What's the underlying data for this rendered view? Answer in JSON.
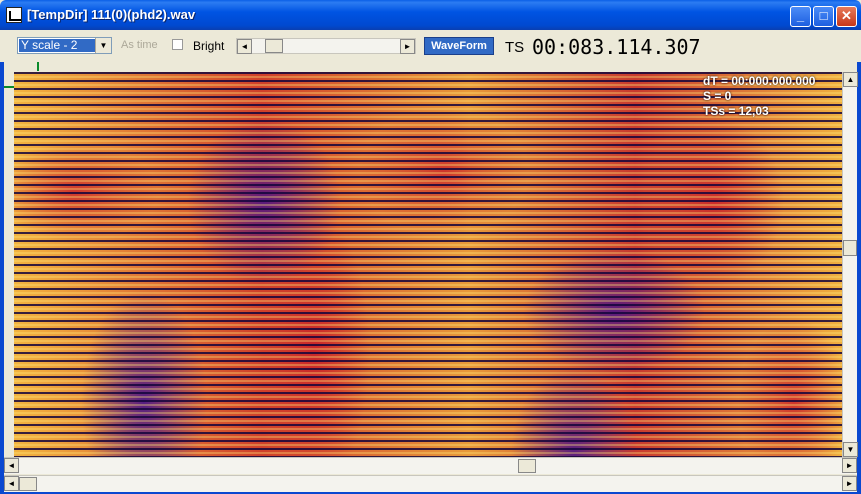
{
  "window": {
    "title": "[TempDir] 111(0)(phd2).wav",
    "minimize_glyph": "_",
    "maximize_glyph": "□",
    "close_glyph": "✕"
  },
  "toolbar": {
    "yscale": {
      "selected": "Y scale - 2"
    },
    "as_time_label": "As time",
    "as_time_checked": false,
    "bright_label": "Bright",
    "bright_slider_fraction": 0.1,
    "waveform_label": "WaveForm",
    "ts_label": "TS",
    "ts_value": "00:083.114.307"
  },
  "overlay": {
    "dt": "dT = 00:000.000.000",
    "s": "S = 0",
    "tss": "TSs = 12,03"
  },
  "icons": {
    "left_arrow": "◄",
    "right_arrow": "►",
    "up_arrow": "▲",
    "down_arrow": "▼",
    "dropdown_arrow": "▼"
  },
  "colors": {
    "titlebar": "#0054e3",
    "selection": "#316ac5",
    "spectrogram_hot": "#f2b440",
    "spectrogram_mid": "#d0402a",
    "spectrogram_cold": "#46148c"
  },
  "scroll": {
    "vertical_fraction": 0.45,
    "horizontal_main_fraction": 0.62,
    "horizontal_secondary_fraction": 0.0
  }
}
